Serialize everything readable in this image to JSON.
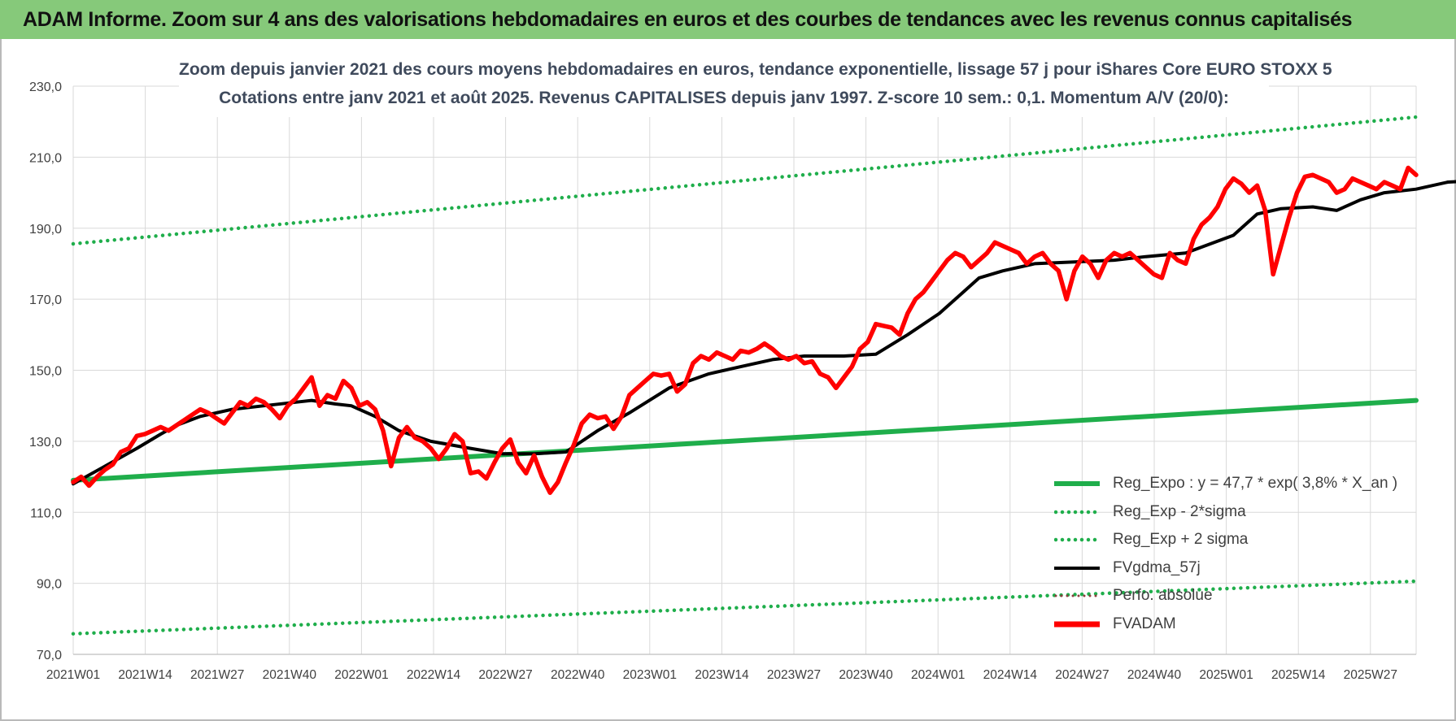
{
  "header": {
    "title": "ADAM Informe. Zoom sur 4 ans des valorisations hebdomadaires en euros et des courbes de tendances avec les revenus connus capitalisés"
  },
  "chart_data": {
    "type": "line",
    "title": "Zoom depuis janvier 2021 des cours moyens hebdomadaires en euros, tendance exponentielle, lissage 57 j pour iShares Core EURO STOXX 5",
    "subtitle": "Cotations entre janv 2021 et août 2025. Revenus CAPITALISES depuis janv 1997. Z-score 10 sem.: 0,1. Momentum A/V (20/0):",
    "ylim": [
      70,
      230
    ],
    "y_ticks": [
      "230,0",
      "210,0",
      "190,0",
      "170,0",
      "150,0",
      "130,0",
      "110,0",
      "90,0",
      "70,0"
    ],
    "x_ticks": [
      "2021W01",
      "2021W14",
      "2021W27",
      "2021W40",
      "2022W01",
      "2022W14",
      "2022W27",
      "2022W40",
      "2023W01",
      "2023W14",
      "2023W27",
      "2023W40",
      "2024W01",
      "2024W14",
      "2024W27",
      "2024W40",
      "2025W01",
      "2025W14",
      "2025W27"
    ],
    "x_index_range": [
      0,
      240
    ],
    "grid": true,
    "legend_position": "bottom-right",
    "series": [
      {
        "name": "Reg_Expo : y = 47,7 * exp( 3,8% *  X_an )",
        "style": "solid",
        "color": "#1fae4b",
        "points": [
          [
            0,
            119.0
          ],
          [
            240,
            141.5
          ]
        ]
      },
      {
        "name": "Reg_Exp - 2*sigma",
        "style": "dotted",
        "color": "#1fae4b",
        "points": [
          [
            0,
            75.8
          ],
          [
            240,
            90.6
          ]
        ]
      },
      {
        "name": "Reg_Exp + 2 sigma",
        "style": "dotted",
        "color": "#1fae4b",
        "points": [
          [
            0,
            185.6
          ],
          [
            240,
            221.3
          ]
        ]
      },
      {
        "name": "FVgdma_57j",
        "style": "solid",
        "color": "#000000",
        "points": [
          [
            0,
            118
          ],
          [
            8,
            123
          ],
          [
            16,
            128
          ],
          [
            22,
            132
          ],
          [
            26,
            134.5
          ],
          [
            32,
            137
          ],
          [
            40,
            139
          ],
          [
            48,
            140
          ],
          [
            56,
            141
          ],
          [
            60,
            141.5
          ],
          [
            66,
            140.5
          ],
          [
            70,
            140
          ],
          [
            76,
            137
          ],
          [
            82,
            133
          ],
          [
            90,
            130
          ],
          [
            100,
            128
          ],
          [
            108,
            126.5
          ],
          [
            116,
            126.5
          ],
          [
            124,
            127
          ],
          [
            132,
            133
          ],
          [
            140,
            138
          ],
          [
            150,
            145
          ],
          [
            160,
            149
          ],
          [
            168,
            151
          ],
          [
            176,
            153
          ],
          [
            184,
            154
          ],
          [
            194,
            154
          ],
          [
            202,
            154.5
          ],
          [
            210,
            160
          ],
          [
            218,
            166
          ],
          [
            224,
            172
          ],
          [
            228,
            176
          ],
          [
            234,
            178
          ],
          [
            242,
            180
          ],
          [
            252,
            180.5
          ],
          [
            262,
            181
          ],
          [
            270,
            182
          ],
          [
            280,
            183
          ],
          [
            292,
            188
          ],
          [
            298,
            194
          ],
          [
            304,
            195.5
          ],
          [
            312,
            196
          ],
          [
            318,
            195
          ],
          [
            324,
            198
          ],
          [
            330,
            200
          ],
          [
            338,
            201
          ],
          [
            346,
            203
          ],
          [
            354,
            203.5
          ],
          [
            356,
            203.5
          ]
        ]
      },
      {
        "name": "Perfo. absolue",
        "style": "dotted",
        "color": "#8b3d3d",
        "points": []
      },
      {
        "name": "FVADAM",
        "style": "solid",
        "color": "#ff0000",
        "points": [
          [
            0,
            118.5
          ],
          [
            2,
            120
          ],
          [
            4,
            117.5
          ],
          [
            6,
            120
          ],
          [
            8,
            122
          ],
          [
            10,
            123.5
          ],
          [
            12,
            127
          ],
          [
            14,
            128
          ],
          [
            16,
            131.5
          ],
          [
            18,
            132
          ],
          [
            20,
            133
          ],
          [
            22,
            134
          ],
          [
            24,
            133
          ],
          [
            26,
            134.5
          ],
          [
            28,
            136
          ],
          [
            30,
            137.5
          ],
          [
            32,
            139
          ],
          [
            34,
            138
          ],
          [
            36,
            136.5
          ],
          [
            38,
            135
          ],
          [
            40,
            138
          ],
          [
            42,
            141
          ],
          [
            44,
            140
          ],
          [
            46,
            142
          ],
          [
            48,
            141
          ],
          [
            50,
            139
          ],
          [
            52,
            136.5
          ],
          [
            54,
            140
          ],
          [
            56,
            142
          ],
          [
            58,
            145
          ],
          [
            60,
            148
          ],
          [
            62,
            140
          ],
          [
            64,
            143
          ],
          [
            66,
            142
          ],
          [
            68,
            147
          ],
          [
            70,
            145
          ],
          [
            72,
            140
          ],
          [
            74,
            141
          ],
          [
            76,
            139
          ],
          [
            78,
            133
          ],
          [
            80,
            123
          ],
          [
            82,
            131
          ],
          [
            84,
            134
          ],
          [
            86,
            131
          ],
          [
            88,
            130
          ],
          [
            90,
            128
          ],
          [
            92,
            125
          ],
          [
            94,
            128
          ],
          [
            96,
            132
          ],
          [
            98,
            130
          ],
          [
            100,
            121
          ],
          [
            102,
            121.5
          ],
          [
            104,
            119.5
          ],
          [
            106,
            124
          ],
          [
            108,
            128
          ],
          [
            110,
            130.5
          ],
          [
            112,
            124
          ],
          [
            114,
            121
          ],
          [
            116,
            126
          ],
          [
            118,
            120
          ],
          [
            120,
            115.5
          ],
          [
            122,
            118.5
          ],
          [
            124,
            124
          ],
          [
            126,
            129
          ],
          [
            128,
            135
          ],
          [
            130,
            137.5
          ],
          [
            132,
            136.5
          ],
          [
            134,
            137
          ],
          [
            136,
            133.5
          ],
          [
            138,
            137
          ],
          [
            140,
            143
          ],
          [
            142,
            145
          ],
          [
            144,
            147
          ],
          [
            146,
            149
          ],
          [
            148,
            148.5
          ],
          [
            150,
            149
          ],
          [
            152,
            144
          ],
          [
            154,
            146
          ],
          [
            156,
            152
          ],
          [
            158,
            154
          ],
          [
            160,
            153
          ],
          [
            162,
            155
          ],
          [
            164,
            154
          ],
          [
            166,
            153
          ],
          [
            168,
            155.5
          ],
          [
            170,
            155
          ],
          [
            172,
            156
          ],
          [
            174,
            157.5
          ],
          [
            176,
            156
          ],
          [
            178,
            154
          ],
          [
            180,
            153
          ],
          [
            182,
            154
          ],
          [
            184,
            152
          ],
          [
            186,
            152.5
          ],
          [
            188,
            149
          ],
          [
            190,
            148
          ],
          [
            192,
            145
          ],
          [
            194,
            148
          ],
          [
            196,
            151
          ],
          [
            198,
            156
          ],
          [
            200,
            158
          ],
          [
            202,
            163
          ],
          [
            204,
            162.5
          ],
          [
            206,
            162
          ],
          [
            208,
            160
          ],
          [
            210,
            166
          ],
          [
            212,
            170
          ],
          [
            214,
            172
          ],
          [
            216,
            175
          ],
          [
            218,
            178
          ],
          [
            220,
            181
          ],
          [
            222,
            183
          ],
          [
            224,
            182
          ],
          [
            226,
            179
          ],
          [
            228,
            181
          ],
          [
            230,
            183
          ],
          [
            232,
            186
          ],
          [
            234,
            185
          ],
          [
            236,
            184
          ],
          [
            238,
            183
          ],
          [
            240,
            180
          ],
          [
            242,
            182
          ],
          [
            244,
            183
          ],
          [
            246,
            180
          ],
          [
            248,
            178
          ],
          [
            250,
            170
          ],
          [
            252,
            178
          ],
          [
            254,
            182
          ],
          [
            256,
            180
          ],
          [
            258,
            176
          ],
          [
            260,
            181
          ],
          [
            262,
            183
          ],
          [
            264,
            182
          ],
          [
            266,
            183
          ],
          [
            268,
            181
          ],
          [
            270,
            179
          ],
          [
            272,
            177
          ],
          [
            274,
            176
          ],
          [
            276,
            183
          ],
          [
            278,
            181
          ],
          [
            280,
            180
          ],
          [
            282,
            187
          ],
          [
            284,
            191
          ],
          [
            286,
            193
          ],
          [
            288,
            196
          ],
          [
            290,
            201
          ],
          [
            292,
            204
          ],
          [
            294,
            202.5
          ],
          [
            296,
            200
          ],
          [
            298,
            202
          ],
          [
            300,
            195
          ],
          [
            302,
            177
          ],
          [
            304,
            185
          ],
          [
            306,
            193
          ],
          [
            308,
            200
          ],
          [
            310,
            204.5
          ],
          [
            312,
            205
          ],
          [
            314,
            204
          ],
          [
            316,
            203
          ],
          [
            318,
            200
          ],
          [
            320,
            201
          ],
          [
            322,
            204
          ],
          [
            324,
            203
          ],
          [
            326,
            202
          ],
          [
            328,
            201
          ],
          [
            330,
            203
          ],
          [
            332,
            202
          ],
          [
            334,
            201
          ],
          [
            336,
            207
          ],
          [
            338,
            205
          ]
        ]
      }
    ]
  },
  "legend_labels": [
    "Reg_Expo : y = 47,7 * exp( 3,8% *  X_an )",
    "Reg_Exp - 2*sigma",
    "Reg_Exp + 2 sigma",
    "FVgdma_57j",
    "Perfo. absolue",
    "FVADAM"
  ],
  "colors": {
    "header_bg": "#86c97a",
    "reg_green": "#1fae4b",
    "fvadam_red": "#ff0000",
    "fvgdma_black": "#000000",
    "perfo_dotted": "#8b3d3d"
  }
}
